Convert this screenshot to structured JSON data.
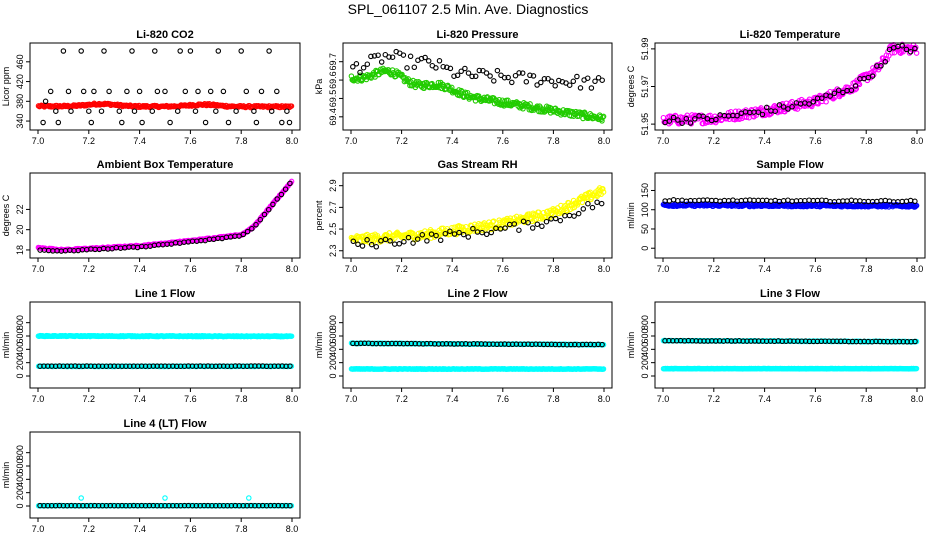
{
  "page": {
    "title": "SPL_061107  2.5 Min. Ave. Diagnostics"
  },
  "colors": {
    "red": "#ff0000",
    "green": "#22cc00",
    "magenta": "#ff00ff",
    "yellow": "#ffff00",
    "blue": "#0000ff",
    "cyan": "#00ffff",
    "black": "#000000"
  },
  "chart_data": [
    {
      "id": "co2",
      "type": "scatter",
      "title": "Li-820 CO2",
      "ylabel": "Licor ppm",
      "xlim": [
        7.0,
        8.0
      ],
      "xticks": [
        7.0,
        7.2,
        7.4,
        7.6,
        7.8,
        8.0
      ],
      "ylim": [
        330,
        490
      ],
      "yticks": [
        340,
        380,
        420,
        460
      ],
      "series": [
        {
          "name": "red dense",
          "color": "red",
          "kind": "dense",
          "start": 370,
          "end": 369,
          "noise": 2,
          "bumps": [
            [
              7.25,
              5
            ],
            [
              7.65,
              4
            ]
          ],
          "count": 260
        },
        {
          "name": "black outlier points",
          "color": "black",
          "kind": "points",
          "x": [
            7.02,
            7.08,
            7.1,
            7.17,
            7.21,
            7.26,
            7.33,
            7.37,
            7.41,
            7.46,
            7.52,
            7.56,
            7.6,
            7.66,
            7.71,
            7.75,
            7.8,
            7.86,
            7.91,
            7.96,
            7.99,
            7.05,
            7.12,
            7.18,
            7.22,
            7.28,
            7.35,
            7.4,
            7.47,
            7.5,
            7.58,
            7.63,
            7.68,
            7.73,
            7.82,
            7.88,
            7.94,
            7.03,
            7.07,
            7.13,
            7.2,
            7.25,
            7.32,
            7.38,
            7.45,
            7.55,
            7.62,
            7.7,
            7.78,
            7.85,
            7.92,
            7.98
          ],
          "y": [
            337,
            337,
            482,
            482,
            337,
            482,
            337,
            482,
            337,
            482,
            337,
            482,
            482,
            337,
            482,
            337,
            482,
            337,
            482,
            337,
            337,
            400,
            400,
            400,
            400,
            400,
            400,
            400,
            400,
            400,
            400,
            400,
            400,
            400,
            400,
            400,
            400,
            380,
            360,
            360,
            360,
            360,
            360,
            360,
            360,
            360,
            360,
            360,
            360,
            360,
            360,
            360
          ]
        }
      ]
    },
    {
      "id": "pressure",
      "type": "scatter",
      "title": "Li-820 Pressure",
      "ylabel": "kPa",
      "xlim": [
        7.0,
        8.0
      ],
      "xticks": [
        7.0,
        7.2,
        7.4,
        7.6,
        7.8,
        8.0
      ],
      "ylim": [
        69.35,
        69.78
      ],
      "yticks": [
        69.4,
        69.5,
        69.6,
        69.7
      ],
      "series": [
        {
          "name": "green dense",
          "color": "green",
          "kind": "dense",
          "start": 69.61,
          "end": 69.39,
          "noise": 0.018,
          "bumps": [
            [
              7.15,
              0.07
            ],
            [
              7.35,
              0.04
            ]
          ],
          "count": 320
        },
        {
          "name": "black points",
          "color": "black",
          "kind": "trend",
          "start": 69.67,
          "end": 69.58,
          "noise": 0.035,
          "bumps": [
            [
              7.15,
              0.07
            ],
            [
              7.3,
              0.05
            ]
          ],
          "count": 70
        }
      ]
    },
    {
      "id": "temperature",
      "type": "scatter",
      "title": "Li-820 Temperature",
      "ylabel": "degrees C",
      "xlim": [
        7.0,
        8.0
      ],
      "xticks": [
        7.0,
        7.2,
        7.4,
        7.6,
        7.8,
        8.0
      ],
      "ylim": [
        51.949,
        51.991
      ],
      "yticks": [
        51.95,
        51.97,
        51.99
      ],
      "series": [
        {
          "name": "magenta dense",
          "color": "magenta",
          "kind": "curve",
          "points": [
            [
              7.0,
              51.952
            ],
            [
              7.2,
              51.953
            ],
            [
              7.4,
              51.957
            ],
            [
              7.6,
              51.962
            ],
            [
              7.75,
              51.97
            ],
            [
              7.85,
              51.98
            ],
            [
              7.9,
              51.99
            ],
            [
              8.0,
              51.99
            ]
          ],
          "noise": 0.0025,
          "count": 320
        },
        {
          "name": "black points",
          "color": "black",
          "kind": "curve",
          "points": [
            [
              7.0,
              51.952
            ],
            [
              7.2,
              51.953
            ],
            [
              7.4,
              51.957
            ],
            [
              7.6,
              51.962
            ],
            [
              7.75,
              51.97
            ],
            [
              7.85,
              51.98
            ],
            [
              7.9,
              51.99
            ],
            [
              8.0,
              51.99
            ]
          ],
          "noise": 0.002,
          "count": 60
        }
      ]
    },
    {
      "id": "ambient",
      "type": "scatter",
      "title": "Ambient Box Temperature",
      "ylabel": "degrees C",
      "xlim": [
        7.0,
        8.0
      ],
      "xticks": [
        7.0,
        7.2,
        7.4,
        7.6,
        7.8,
        8.0
      ],
      "ylim": [
        17.6,
        25.2
      ],
      "yticks": [
        18,
        20,
        22
      ],
      "series": [
        {
          "name": "magenta dense",
          "color": "magenta",
          "kind": "curve",
          "points": [
            [
              7.0,
              18.2
            ],
            [
              7.1,
              18.0
            ],
            [
              7.4,
              18.4
            ],
            [
              7.6,
              18.9
            ],
            [
              7.8,
              19.5
            ],
            [
              7.85,
              20.3
            ],
            [
              8.0,
              24.8
            ]
          ],
          "noise": 0.06,
          "count": 300
        },
        {
          "name": "black points",
          "color": "black",
          "kind": "curve",
          "points": [
            [
              7.0,
              18.0
            ],
            [
              7.1,
              17.9
            ],
            [
              7.4,
              18.3
            ],
            [
              7.6,
              18.8
            ],
            [
              7.8,
              19.4
            ],
            [
              7.85,
              20.2
            ],
            [
              8.0,
              24.8
            ]
          ],
          "noise": 0.05,
          "count": 60
        }
      ]
    },
    {
      "id": "rh",
      "type": "scatter",
      "title": "Gas Stream RH",
      "ylabel": "percent",
      "xlim": [
        7.0,
        8.0
      ],
      "xticks": [
        7.0,
        7.2,
        7.4,
        7.6,
        7.8,
        8.0
      ],
      "ylim": [
        2.27,
        2.98
      ],
      "yticks": [
        2.3,
        2.5,
        2.7,
        2.9
      ],
      "series": [
        {
          "name": "yellow dense",
          "color": "yellow",
          "kind": "curve",
          "points": [
            [
              7.0,
              2.4
            ],
            [
              7.3,
              2.45
            ],
            [
              7.6,
              2.55
            ],
            [
              7.8,
              2.65
            ],
            [
              8.0,
              2.86
            ]
          ],
          "noise": 0.04,
          "count": 320
        },
        {
          "name": "black points",
          "color": "black",
          "kind": "curve",
          "points": [
            [
              7.0,
              2.35
            ],
            [
              7.3,
              2.42
            ],
            [
              7.6,
              2.5
            ],
            [
              7.8,
              2.58
            ],
            [
              8.0,
              2.76
            ]
          ],
          "noise": 0.04,
          "count": 55
        }
      ]
    },
    {
      "id": "sample_flow",
      "type": "scatter",
      "title": "Sample Flow",
      "ylabel": "ml/min",
      "xlim": [
        7.0,
        8.0
      ],
      "xticks": [
        7.0,
        7.2,
        7.4,
        7.6,
        7.8,
        8.0
      ],
      "ylim": [
        -15,
        185
      ],
      "yticks": [
        0,
        50,
        100,
        150
      ],
      "series": [
        {
          "name": "blue dense",
          "color": "blue",
          "kind": "dense",
          "start": 112,
          "end": 110,
          "noise": 3,
          "bumps": [],
          "count": 320
        },
        {
          "name": "black points",
          "color": "black",
          "kind": "dense",
          "start": 124,
          "end": 122,
          "noise": 2,
          "bumps": [],
          "count": 60
        }
      ]
    },
    {
      "id": "line1",
      "type": "scatter",
      "title": "Line 1 Flow",
      "ylabel": "ml/min",
      "xlim": [
        7.0,
        8.0
      ],
      "xticks": [
        7.0,
        7.2,
        7.4,
        7.6,
        7.8,
        8.0
      ],
      "ylim": [
        -120,
        1050
      ],
      "yticks": [
        0,
        200,
        400,
        600,
        800
      ],
      "series": [
        {
          "name": "cyan upper",
          "color": "cyan",
          "kind": "dense",
          "start": 600,
          "end": 595,
          "noise": 6,
          "bumps": [],
          "count": 300
        },
        {
          "name": "cyan lower",
          "color": "cyan",
          "kind": "dense",
          "start": 145,
          "end": 145,
          "noise": 3,
          "bumps": [],
          "count": 200
        },
        {
          "name": "black points",
          "color": "black",
          "kind": "dense",
          "start": 148,
          "end": 148,
          "noise": 2,
          "bumps": [],
          "count": 65
        }
      ]
    },
    {
      "id": "line2",
      "type": "scatter",
      "title": "Line 2 Flow",
      "ylabel": "ml/min",
      "xlim": [
        7.0,
        8.0
      ],
      "xticks": [
        7.0,
        7.2,
        7.4,
        7.6,
        7.8,
        8.0
      ],
      "ylim": [
        -120,
        1050
      ],
      "yticks": [
        0,
        200,
        400,
        600,
        800
      ],
      "series": [
        {
          "name": "cyan upper",
          "color": "cyan",
          "kind": "dense",
          "start": 490,
          "end": 470,
          "noise": 4,
          "bumps": [],
          "count": 260
        },
        {
          "name": "cyan lower",
          "color": "cyan",
          "kind": "dense",
          "start": 105,
          "end": 105,
          "noise": 3,
          "bumps": [],
          "count": 260
        },
        {
          "name": "black points",
          "color": "black",
          "kind": "dense",
          "start": 490,
          "end": 470,
          "noise": 3,
          "bumps": [],
          "count": 65
        }
      ]
    },
    {
      "id": "line3",
      "type": "scatter",
      "title": "Line 3 Flow",
      "ylabel": "ml/min",
      "xlim": [
        7.0,
        8.0
      ],
      "xticks": [
        7.0,
        7.2,
        7.4,
        7.6,
        7.8,
        8.0
      ],
      "ylim": [
        -120,
        1050
      ],
      "yticks": [
        0,
        200,
        400,
        600,
        800
      ],
      "series": [
        {
          "name": "cyan upper",
          "color": "cyan",
          "kind": "dense",
          "start": 530,
          "end": 515,
          "noise": 4,
          "bumps": [],
          "count": 260
        },
        {
          "name": "cyan lower",
          "color": "cyan",
          "kind": "dense",
          "start": 110,
          "end": 110,
          "noise": 3,
          "bumps": [],
          "count": 260
        },
        {
          "name": "black points",
          "color": "black",
          "kind": "dense",
          "start": 530,
          "end": 515,
          "noise": 3,
          "bumps": [],
          "count": 65
        }
      ]
    },
    {
      "id": "line4",
      "type": "scatter",
      "title": "Line 4 (LT) Flow",
      "ylabel": "ml/min",
      "xlim": [
        7.0,
        8.0
      ],
      "xticks": [
        7.0,
        7.2,
        7.4,
        7.6,
        7.8,
        8.0
      ],
      "ylim": [
        -120,
        1050
      ],
      "yticks": [
        0,
        200,
        400,
        600,
        800
      ],
      "series": [
        {
          "name": "cyan dense",
          "color": "cyan",
          "kind": "dense",
          "start": 5,
          "end": 5,
          "noise": 2,
          "bumps": [],
          "count": 200
        },
        {
          "name": "cyan outliers",
          "color": "cyan",
          "kind": "points",
          "x": [
            7.17,
            7.5,
            7.83
          ],
          "y": [
            120,
            120,
            120
          ]
        },
        {
          "name": "black points",
          "color": "black",
          "kind": "dense",
          "start": 5,
          "end": 5,
          "noise": 1,
          "bumps": [],
          "count": 65
        }
      ]
    }
  ]
}
